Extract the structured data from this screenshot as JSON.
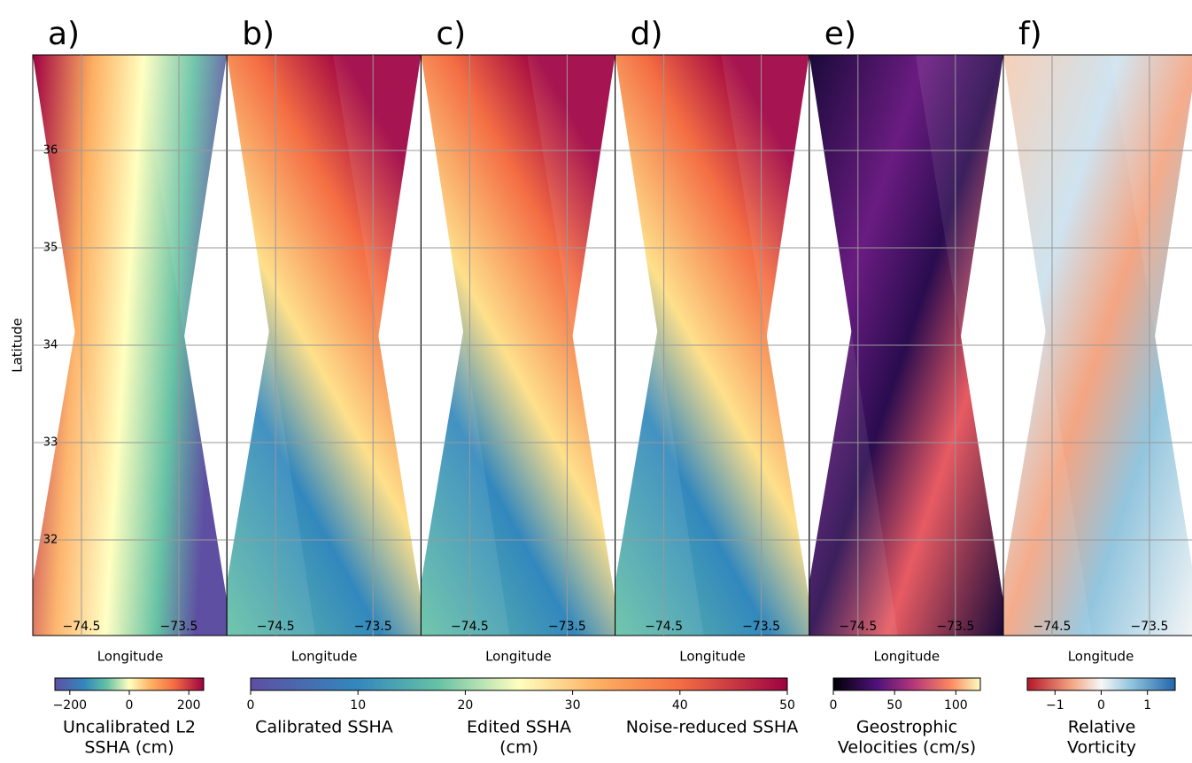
{
  "ylabel": "Latitude",
  "lat_ticks": [
    36,
    35,
    34,
    33,
    32
  ],
  "lon_ticks": [
    {
      "value": -74.5,
      "label": "−74.5"
    },
    {
      "value": -73.5,
      "label": "−73.5"
    }
  ],
  "panels": [
    {
      "label": "a)",
      "xlabel": "Longitude"
    },
    {
      "label": "b)",
      "xlabel": "Longitude"
    },
    {
      "label": "c)",
      "xlabel": "Longitude"
    },
    {
      "label": "d)",
      "xlabel": "Longitude"
    },
    {
      "label": "e)",
      "xlabel": "Longitude"
    },
    {
      "label": "f)",
      "xlabel": "Longitude"
    }
  ],
  "colorbars": [
    {
      "lim": [
        -250,
        250
      ],
      "ticks": [
        {
          "value": -200,
          "label": "−200"
        },
        0,
        200
      ],
      "labels": [
        [
          "Uncalibrated L2",
          "SSHA (cm)"
        ]
      ]
    },
    {
      "lim": [
        0,
        50
      ],
      "ticks": [
        0,
        10,
        20,
        30,
        40,
        50
      ],
      "labels": [
        [
          "Calibrated SSHA"
        ],
        [
          "Edited SSHA",
          "(cm)"
        ],
        [
          "Noise-reduced SSHA"
        ]
      ]
    },
    {
      "lim": [
        0,
        120
      ],
      "ticks": [
        0,
        50,
        100
      ],
      "labels": [
        [
          "Geostrophic",
          "Velocities (cm/s)"
        ]
      ]
    },
    {
      "lim": [
        -1.6,
        1.6
      ],
      "ticks": [
        {
          "value": -1,
          "label": "−1"
        },
        0,
        1
      ],
      "labels": [
        [
          "Relative",
          "Vorticity"
        ]
      ]
    }
  ]
}
